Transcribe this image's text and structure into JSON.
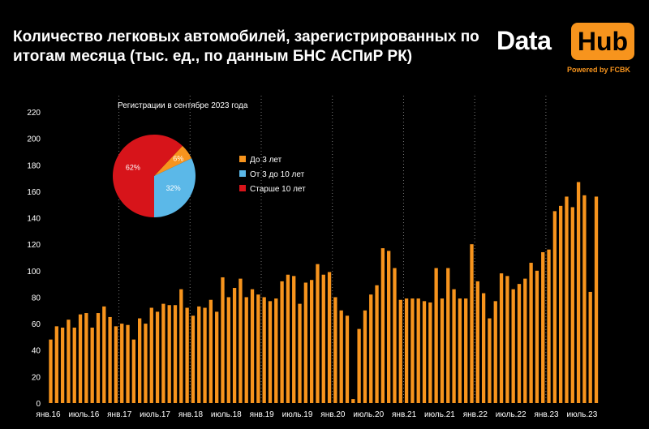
{
  "header": {
    "title": "Количество легковых автомобилей, зарегистрированных по итогам месяца (тыс. ед., по данным БНС АСПиР РК)"
  },
  "logo": {
    "data_text": "Data",
    "hub_text": "Hub",
    "powered_text": "Powered by FCBK",
    "accent_color": "#f7941d"
  },
  "chart_data": [
    {
      "type": "bar",
      "title": "",
      "xlabel": "",
      "ylabel": "",
      "ylim": [
        0,
        220
      ],
      "yticks": [
        0,
        20,
        40,
        60,
        80,
        100,
        120,
        140,
        160,
        180,
        200,
        220
      ],
      "bar_color": "#f7941d",
      "grid": "vertical dotted lines at January",
      "x_tick_labels": [
        "янв.16",
        "июль.16",
        "янв.17",
        "июль.17",
        "янв.18",
        "июль.18",
        "янв.19",
        "июль.19",
        "янв.20",
        "июль.20",
        "янв.21",
        "июль.21",
        "янв.22",
        "июль.22",
        "янв.23",
        "июль.23"
      ],
      "categories": [
        "янв.16",
        "фев.16",
        "мар.16",
        "апр.16",
        "май.16",
        "июнь.16",
        "июль.16",
        "авг.16",
        "сен.16",
        "окт.16",
        "ноя.16",
        "дек.16",
        "янв.17",
        "фев.17",
        "мар.17",
        "апр.17",
        "май.17",
        "июнь.17",
        "июль.17",
        "авг.17",
        "сен.17",
        "окт.17",
        "ноя.17",
        "дек.17",
        "янв.18",
        "фев.18",
        "мар.18",
        "апр.18",
        "май.18",
        "июнь.18",
        "июль.18",
        "авг.18",
        "сен.18",
        "окт.18",
        "ноя.18",
        "дек.18",
        "янв.19",
        "фев.19",
        "мар.19",
        "апр.19",
        "май.19",
        "июнь.19",
        "июль.19",
        "авг.19",
        "сен.19",
        "окт.19",
        "ноя.19",
        "дек.19",
        "янв.20",
        "фев.20",
        "мар.20",
        "апр.20",
        "май.20",
        "июнь.20",
        "июль.20",
        "авг.20",
        "сен.20",
        "окт.20",
        "ноя.20",
        "дек.20",
        "янв.21",
        "фев.21",
        "мар.21",
        "апр.21",
        "май.21",
        "июнь.21",
        "июль.21",
        "авг.21",
        "сен.21",
        "окт.21",
        "ноя.21",
        "дек.21",
        "янв.22",
        "фев.22",
        "мар.22",
        "апр.22",
        "май.22",
        "июнь.22",
        "июль.22",
        "авг.22",
        "сен.22",
        "окт.22",
        "ноя.22",
        "дек.22",
        "янв.23",
        "фев.23",
        "мар.23",
        "апр.23",
        "май.23",
        "июнь.23",
        "июль.23",
        "авг.23",
        "сен.23"
      ],
      "values": [
        48,
        58,
        57,
        63,
        57,
        67,
        68,
        57,
        68,
        73,
        65,
        58,
        60,
        59,
        48,
        64,
        60,
        72,
        69,
        75,
        74,
        74,
        86,
        72,
        66,
        73,
        72,
        78,
        69,
        95,
        80,
        87,
        94,
        80,
        86,
        82,
        80,
        77,
        79,
        92,
        97,
        96,
        75,
        91,
        93,
        105,
        97,
        99,
        80,
        70,
        66,
        3,
        56,
        70,
        82,
        89,
        117,
        115,
        102,
        78,
        79,
        79,
        79,
        77,
        76,
        102,
        79,
        102,
        86,
        79,
        79,
        120,
        92,
        83,
        64,
        77,
        98,
        96,
        86,
        90,
        94,
        106,
        100,
        114,
        116,
        145,
        149,
        156,
        148,
        167,
        157,
        84,
        156
      ]
    },
    {
      "type": "pie",
      "title": "Регистрации в сентябре 2023 года",
      "series": [
        {
          "name": "До 3 лет",
          "value": 6,
          "label": "6%",
          "color": "#f7941d"
        },
        {
          "name": "От 3 до 10 лет",
          "value": 32,
          "label": "32%",
          "color": "#5bb8e8"
        },
        {
          "name": "Старше 10 лет",
          "value": 62,
          "label": "62%",
          "color": "#d7141a"
        }
      ],
      "legend_position": "right"
    }
  ]
}
